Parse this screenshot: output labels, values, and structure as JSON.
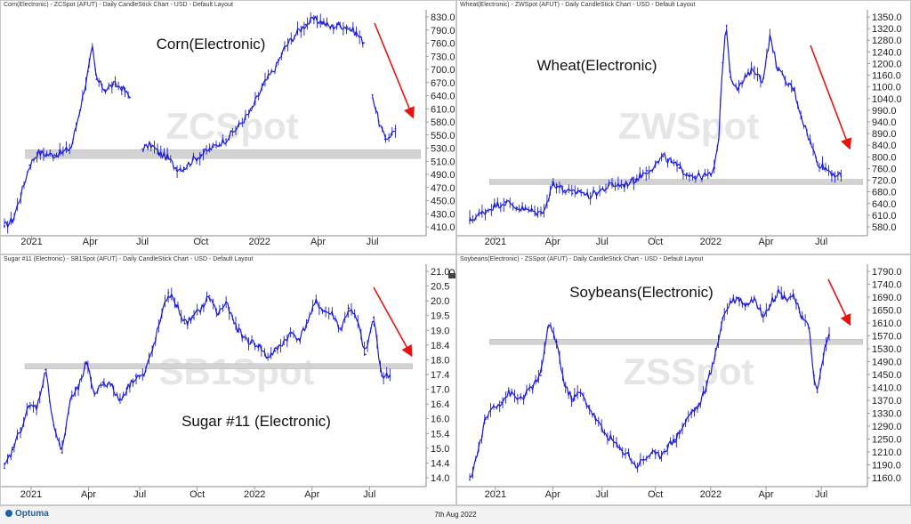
{
  "footer": {
    "brand": "Optuma",
    "date": "7th Aug 2022"
  },
  "panels": [
    {
      "key": "corn",
      "caption": "Corn(Electronic) - ZCSpot (AFUT) - Daily CandleStick Chart - USD - Default Layout",
      "title": "Corn(Electronic)",
      "watermark": "ZCSpot",
      "chart_data": {
        "type": "line",
        "instrument": "ZCSpot",
        "title": "Corn(Electronic)",
        "ylim": [
          410,
          830
        ],
        "yticks": [
          "830.0",
          "790.0",
          "760.0",
          "730.0",
          "700.0",
          "670.0",
          "640.0",
          "610.0",
          "580.0",
          "550.0",
          "530.0",
          "510.0",
          "490.0",
          "470.0",
          "450.0",
          "430.0",
          "410.0"
        ],
        "xticks": [
          "2021",
          "Apr",
          "Jul",
          "Oct",
          "2022",
          "Apr",
          "Jul"
        ],
        "xtick_pos": [
          0.065,
          0.205,
          0.33,
          0.47,
          0.61,
          0.75,
          0.88
        ],
        "support_band": [
          548,
          565
        ],
        "trend_arrow": "down",
        "x": [
          0,
          0.02,
          0.04,
          0.06,
          0.08,
          0.1,
          0.12,
          0.14,
          0.16,
          0.18,
          0.2,
          0.21,
          0.22,
          0.24,
          0.26,
          0.28,
          0.3,
          0.31,
          0.33,
          0.35,
          0.37,
          0.39,
          0.41,
          0.43,
          0.45,
          0.47,
          0.5,
          0.53,
          0.56,
          0.59,
          0.62,
          0.65,
          0.67,
          0.7,
          0.72,
          0.74,
          0.76,
          0.78,
          0.8,
          0.82,
          0.84,
          0.86,
          0.87,
          0.88,
          0.895,
          0.91,
          0.925,
          0.935
        ],
        "values": [
          418,
          430,
          480,
          535,
          560,
          556,
          555,
          560,
          570,
          640,
          715,
          760,
          700,
          680,
          690,
          685,
          665,
          null,
          566,
          575,
          558,
          550,
          530,
          530,
          545,
          555,
          570,
          585,
          610,
          640,
          690,
          725,
          760,
          790,
          805,
          815,
          810,
          800,
          805,
          800,
          790,
          770,
          null,
          670,
          620,
          585,
          595,
          605
        ]
      }
    },
    {
      "key": "wheat",
      "caption": "Wheat(Electronic) - ZWSpot (AFUT) - Daily CandleStick Chart - USD - Default Layout",
      "title": "Wheat(Electronic)",
      "watermark": "ZWSpot",
      "chart_data": {
        "type": "line",
        "instrument": "ZWSpot",
        "title": "Wheat(Electronic)",
        "ylim": [
          580,
          1350
        ],
        "yticks": [
          "1350.0",
          "1320.0",
          "1280.0",
          "1240.0",
          "1200.0",
          "1160.0",
          "1100.0",
          "1040.0",
          "990.0",
          "940.0",
          "890.0",
          "840.0",
          "800.0",
          "760.0",
          "720.0",
          "680.0",
          "640.0",
          "610.0",
          "580.0"
        ],
        "xticks": [
          "2021",
          "Apr",
          "Jul",
          "Oct",
          "2022",
          "Apr",
          "Jul"
        ],
        "xtick_pos": [
          0.065,
          0.21,
          0.335,
          0.47,
          0.61,
          0.75,
          0.89
        ],
        "support_band": [
          748,
          760
        ],
        "trend_arrow": "down",
        "x": [
          0,
          0.03,
          0.06,
          0.09,
          0.12,
          0.15,
          0.18,
          0.2,
          0.21,
          0.22,
          0.24,
          0.26,
          0.28,
          0.3,
          0.33,
          0.36,
          0.39,
          0.42,
          0.45,
          0.47,
          0.49,
          0.51,
          0.53,
          0.55,
          0.57,
          0.59,
          0.61,
          0.62,
          0.63,
          0.64,
          0.65,
          0.66,
          0.68,
          0.7,
          0.72,
          0.74,
          0.76,
          0.78,
          0.8,
          0.82,
          0.84,
          0.86,
          0.88,
          0.9,
          0.92,
          0.94
        ],
        "values": [
          615,
          640,
          665,
          680,
          660,
          650,
          640,
          690,
          750,
          740,
          720,
          710,
          720,
          700,
          720,
          740,
          740,
          760,
          790,
          810,
          840,
          820,
          800,
          780,
          770,
          770,
          775,
          800,
          900,
          1170,
          1300,
          1120,
          1080,
          1120,
          1150,
          1100,
          1260,
          1150,
          1100,
          1080,
          980,
          900,
          820,
          800,
          780,
          770
        ]
      }
    },
    {
      "key": "sugar",
      "caption": "Sugar #11 (Electronic) - SB1Spot (AFUT) - Daily CandleStick Chart - USD - Default Layout",
      "title": "Sugar #11 (Electronic)",
      "watermark": "SB1Spot",
      "chart_data": {
        "type": "line",
        "instrument": "SB1Spot",
        "title": "Sugar #11 (Electronic)",
        "ylim": [
          14.0,
          21.0
        ],
        "yticks": [
          "21.0",
          "20.5",
          "20.0",
          "19.5",
          "19.0",
          "18.4",
          "18.0",
          "17.4",
          "17.0",
          "16.4",
          "16.0",
          "15.4",
          "15.0",
          "14.4",
          "14.0"
        ],
        "xticks": [
          "2021",
          "Apr",
          "Jul",
          "Oct",
          "2022",
          "Apr",
          "Jul"
        ],
        "xtick_pos": [
          0.065,
          0.205,
          0.33,
          0.47,
          0.61,
          0.75,
          0.89
        ],
        "support_band": [
          17.85,
          18.0
        ],
        "trend_arrow": "down",
        "x": [
          0,
          0.02,
          0.04,
          0.06,
          0.08,
          0.1,
          0.12,
          0.14,
          0.16,
          0.18,
          0.2,
          0.22,
          0.24,
          0.26,
          0.28,
          0.3,
          0.32,
          0.34,
          0.36,
          0.38,
          0.4,
          0.42,
          0.44,
          0.46,
          0.48,
          0.5,
          0.52,
          0.54,
          0.56,
          0.58,
          0.6,
          0.62,
          0.64,
          0.66,
          0.68,
          0.7,
          0.72,
          0.74,
          0.76,
          0.78,
          0.8,
          0.82,
          0.84,
          0.86,
          0.88,
          0.9,
          0.92,
          0.94
        ],
        "values": [
          14.6,
          15.2,
          15.9,
          16.6,
          16.6,
          17.8,
          16.0,
          15.1,
          16.8,
          17.2,
          18.0,
          17.0,
          17.4,
          17.3,
          16.8,
          17.2,
          17.6,
          17.6,
          18.4,
          19.4,
          20.3,
          19.9,
          19.3,
          19.5,
          19.8,
          20.2,
          19.6,
          20.0,
          19.3,
          18.9,
          18.7,
          18.6,
          18.2,
          18.4,
          18.7,
          19.0,
          18.8,
          19.4,
          20.0,
          19.7,
          19.6,
          19.1,
          19.8,
          19.4,
          18.3,
          19.5,
          17.6,
          17.6
        ]
      }
    },
    {
      "key": "soybeans",
      "caption": "Soybeans(Electronic) - ZSSpot (AFUT) - Daily CandleStick Chart - USD - Default Layout",
      "title": "Soybeans(Electronic)",
      "watermark": "ZSSpot",
      "chart_data": {
        "type": "line",
        "instrument": "ZSSpot",
        "title": "Soybeans(Electronic)",
        "ylim": [
          1140,
          1790
        ],
        "yticks": [
          "1790.0",
          "1740.0",
          "1690.0",
          "1650.0",
          "1610.0",
          "1570.0",
          "1530.0",
          "1490.0",
          "1450.0",
          "1410.0",
          "1370.0",
          "1330.0",
          "1290.0",
          "1250.0",
          "1210.0",
          "1190.0",
          "1160.0"
        ],
        "xticks": [
          "2021",
          "Apr",
          "Jul",
          "Oct",
          "2022",
          "Apr",
          "Jul"
        ],
        "xtick_pos": [
          0.065,
          0.21,
          0.335,
          0.47,
          0.61,
          0.75,
          0.89
        ],
        "support_band": [
          1570,
          1578
        ],
        "trend_arrow": "down",
        "x": [
          0,
          0.02,
          0.04,
          0.06,
          0.08,
          0.1,
          0.12,
          0.14,
          0.16,
          0.18,
          0.19,
          0.2,
          0.22,
          0.24,
          0.26,
          0.28,
          0.3,
          0.32,
          0.34,
          0.36,
          0.38,
          0.4,
          0.42,
          0.44,
          0.46,
          0.48,
          0.5,
          0.52,
          0.54,
          0.56,
          0.58,
          0.6,
          0.62,
          0.64,
          0.66,
          0.68,
          0.7,
          0.72,
          0.74,
          0.76,
          0.78,
          0.8,
          0.82,
          0.84,
          0.86,
          0.87,
          0.88,
          0.9,
          0.91
        ],
        "values": [
          1160,
          1240,
          1340,
          1380,
          1390,
          1420,
          1400,
          1410,
          1440,
          1470,
          1560,
          1620,
          1570,
          1440,
          1400,
          1420,
          1380,
          1340,
          1300,
          1280,
          1250,
          1240,
          1200,
          1220,
          1240,
          1230,
          1260,
          1280,
          1320,
          1360,
          1380,
          1440,
          1520,
          1640,
          1690,
          1700,
          1680,
          1700,
          1650,
          1680,
          1720,
          1700,
          1710,
          1640,
          1610,
          1480,
          1420,
          1560,
          1590
        ]
      }
    }
  ]
}
